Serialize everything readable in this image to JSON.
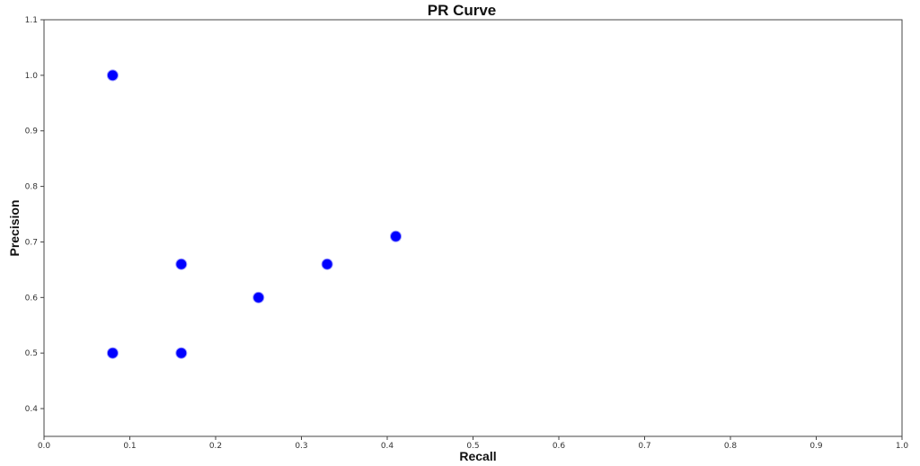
{
  "chart_data": {
    "type": "scatter",
    "title": "PR Curve",
    "xlabel": "Recall",
    "ylabel": "Precision",
    "xlim": [
      0.0,
      1.0
    ],
    "ylim": [
      0.35,
      1.1
    ],
    "xticks": [
      "0.0",
      "0.1",
      "0.2",
      "0.3",
      "0.4",
      "0.5",
      "0.6",
      "0.7",
      "0.8",
      "0.9",
      "1.0"
    ],
    "yticks": [
      "0.4",
      "0.5",
      "0.6",
      "0.7",
      "0.8",
      "0.9",
      "1.0",
      "1.1"
    ],
    "grid": false,
    "marker_color": "#0000ff",
    "marker_edge_color": "#9a9aff",
    "points": [
      {
        "x": 0.08,
        "y": 1.0
      },
      {
        "x": 0.16,
        "y": 0.66
      },
      {
        "x": 0.25,
        "y": 0.6
      },
      {
        "x": 0.33,
        "y": 0.66
      },
      {
        "x": 0.41,
        "y": 0.71
      },
      {
        "x": 0.08,
        "y": 0.5
      },
      {
        "x": 0.16,
        "y": 0.5
      }
    ]
  }
}
